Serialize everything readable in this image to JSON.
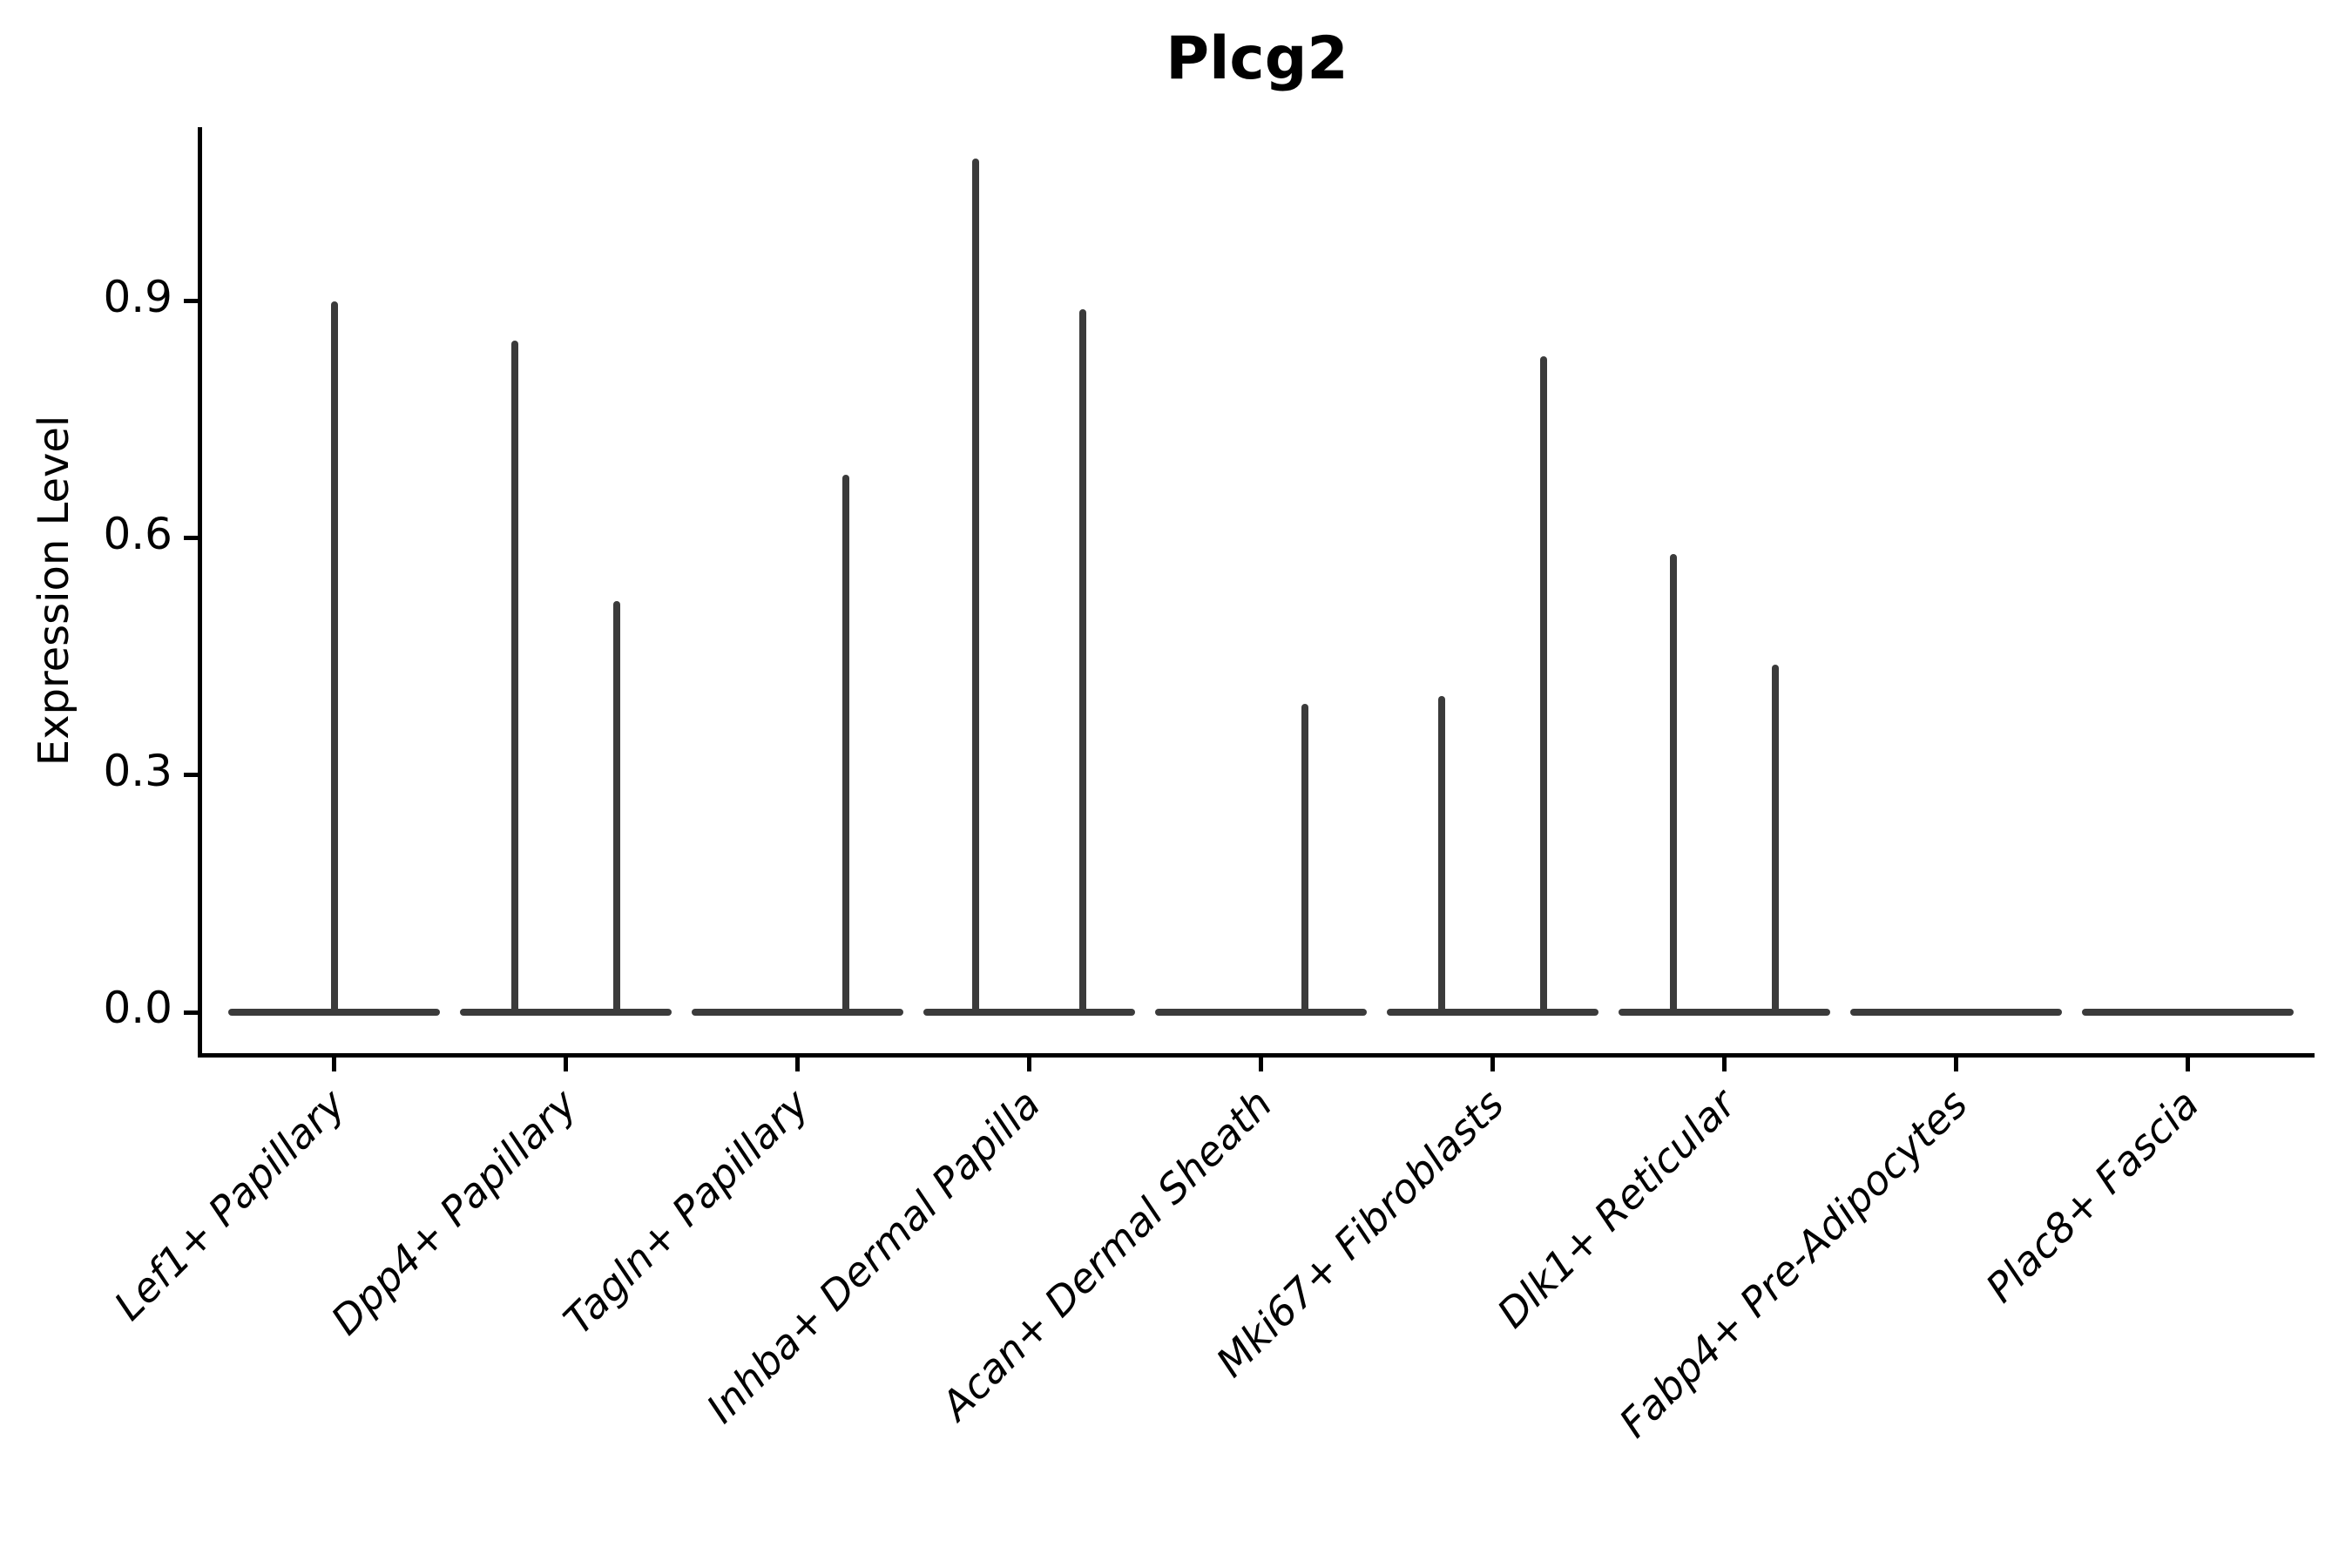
{
  "figure": {
    "title": "Plcg2",
    "y_axis_label": "Expression Level"
  },
  "chart_data": {
    "type": "violin",
    "title": "Plcg2",
    "xlabel": "",
    "ylabel": "Expression Level",
    "ylim": [
      -0.05,
      1.12
    ],
    "y_ticks": [
      {
        "value": 0.0,
        "label": "0.0"
      },
      {
        "value": 0.3,
        "label": "0.3"
      },
      {
        "value": 0.6,
        "label": "0.6"
      },
      {
        "value": 0.9,
        "label": "0.9"
      }
    ],
    "grid": false,
    "legend": "none",
    "description": "Single-cell gene expression violin plot for Plcg2. Each category's violin is collapsed into a flat horizontal bar at expression 0 (most cells express 0) with thin vertical density spikes reaching the maximum expression values of the few expressing cells.",
    "categories": [
      "Lef1+ Papillary",
      "Dpp4+ Papillary",
      "Tagln+ Papillary",
      "Inhba+ Dermal Papilla",
      "Acan+ Dermal Sheath",
      "Mki67+ Fibroblasts",
      "Dlk1+ Reticular",
      "Fabp4+ Pre-Adipocytes",
      "Plac8+ Fascia"
    ],
    "violin_body_width": 0.91,
    "violins": [
      {
        "category": "Lef1+ Papillary",
        "baseline_value": 0.0,
        "spikes": [
          {
            "x_offset": 0.0,
            "max_expression": 0.9
          }
        ]
      },
      {
        "category": "Dpp4+ Papillary",
        "baseline_value": 0.0,
        "spikes": [
          {
            "x_offset": -0.22,
            "max_expression": 0.85
          },
          {
            "x_offset": 0.22,
            "max_expression": 0.52
          }
        ]
      },
      {
        "category": "Tagln+ Papillary",
        "baseline_value": 0.0,
        "spikes": [
          {
            "x_offset": 0.21,
            "max_expression": 0.68
          }
        ]
      },
      {
        "category": "Inhba+ Dermal Papilla",
        "baseline_value": 0.0,
        "spikes": [
          {
            "x_offset": -0.23,
            "max_expression": 1.08
          },
          {
            "x_offset": 0.23,
            "max_expression": 0.89
          }
        ]
      },
      {
        "category": "Acan+ Dermal Sheath",
        "baseline_value": 0.0,
        "spikes": [
          {
            "x_offset": 0.19,
            "max_expression": 0.39
          }
        ]
      },
      {
        "category": "Mki67+ Fibroblasts",
        "baseline_value": 0.0,
        "spikes": [
          {
            "x_offset": -0.22,
            "max_expression": 0.4
          },
          {
            "x_offset": 0.22,
            "max_expression": 0.83
          }
        ]
      },
      {
        "category": "Dlk1+ Reticular",
        "baseline_value": 0.0,
        "spikes": [
          {
            "x_offset": -0.22,
            "max_expression": 0.58
          },
          {
            "x_offset": 0.22,
            "max_expression": 0.44
          }
        ]
      },
      {
        "category": "Fabp4+ Pre-Adipocytes",
        "baseline_value": 0.0,
        "spikes": []
      },
      {
        "category": "Plac8+ Fascia",
        "baseline_value": 0.0,
        "spikes": []
      }
    ],
    "colors": {
      "violin": "#3b3b3b",
      "axis": "#000000",
      "text": "#000000",
      "background": "#ffffff"
    }
  }
}
